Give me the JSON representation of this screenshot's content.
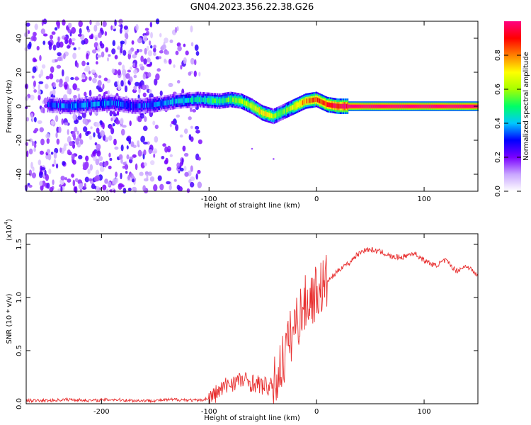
{
  "figure": {
    "title": "GN04.2023.356.22.38.G26"
  },
  "chart_data": [
    {
      "type": "heatmap",
      "panel": "spectrogram",
      "xlabel": "Height of straight line (km)",
      "ylabel": "Frequency (Hz)",
      "xlim": [
        -270,
        150
      ],
      "ylim": [
        -50,
        50
      ],
      "xticks": [
        -200,
        -100,
        0,
        100
      ],
      "yticks": [
        -40,
        -20,
        0,
        20,
        40
      ],
      "colorbar": {
        "label": "Normalized spectral amplitude",
        "range": [
          0.0,
          1.0
        ],
        "ticks": [
          "0.0",
          "0.2",
          "0.4",
          "0.6",
          "0.8"
        ],
        "colormap": [
          "#ffffff",
          "#c9a6ff",
          "#7a00ff",
          "#0000ff",
          "#00c8ff",
          "#00ff66",
          "#a6ff00",
          "#ffff00",
          "#ff8000",
          "#ff0000",
          "#ff0080"
        ]
      },
      "signal_track": {
        "description_free": true,
        "x": [
          -250,
          -230,
          -210,
          -190,
          -170,
          -150,
          -130,
          -110,
          -90,
          -80,
          -70,
          -60,
          -50,
          -40,
          -30,
          -20,
          -10,
          0,
          10,
          20,
          30,
          40,
          150
        ],
        "frequency_hz": [
          1,
          0,
          1,
          2,
          0,
          1,
          3,
          4,
          3,
          4,
          3,
          0,
          -4,
          -6,
          -3,
          0,
          3,
          4,
          1,
          0,
          0,
          0,
          0
        ],
        "amplitude": [
          0.3,
          0.35,
          0.35,
          0.35,
          0.3,
          0.35,
          0.4,
          0.45,
          0.5,
          0.55,
          0.6,
          0.65,
          0.75,
          0.6,
          0.55,
          0.7,
          0.8,
          0.85,
          0.9,
          0.95,
          1.0,
          1.0,
          1.0
        ]
      },
      "noise_region_x": [
        -270,
        -108
      ]
    },
    {
      "type": "line",
      "panel": "snr",
      "xlabel": "Height of straight line (km)",
      "ylabel": "SNR (10 * v/v)",
      "y_scale_label": "(x10",
      "y_scale_exp": "4",
      "xlim": [
        -270,
        150
      ],
      "ylim": [
        0.0,
        1.6
      ],
      "xticks": [
        -200,
        -100,
        0,
        100
      ],
      "yticks": [
        "0.0",
        "0.5",
        "1.0",
        "1.5"
      ],
      "color": "#e83030",
      "x": [
        -270,
        -250,
        -230,
        -210,
        -190,
        -170,
        -150,
        -130,
        -110,
        -100,
        -90,
        -80,
        -70,
        -60,
        -50,
        -40,
        -35,
        -30,
        -25,
        -20,
        -15,
        -10,
        -5,
        0,
        5,
        10,
        15,
        20,
        25,
        30,
        35,
        40,
        45,
        50,
        60,
        70,
        80,
        90,
        100,
        110,
        120,
        130,
        140,
        150
      ],
      "y": [
        0.03,
        0.03,
        0.04,
        0.03,
        0.04,
        0.03,
        0.03,
        0.04,
        0.03,
        0.05,
        0.12,
        0.2,
        0.22,
        0.2,
        0.17,
        0.15,
        0.3,
        0.45,
        0.6,
        0.75,
        0.85,
        0.95,
        1.0,
        1.05,
        1.1,
        1.15,
        1.2,
        1.25,
        1.3,
        1.32,
        1.38,
        1.42,
        1.45,
        1.45,
        1.43,
        1.38,
        1.38,
        1.42,
        1.35,
        1.3,
        1.35,
        1.25,
        1.3,
        1.2
      ]
    }
  ]
}
